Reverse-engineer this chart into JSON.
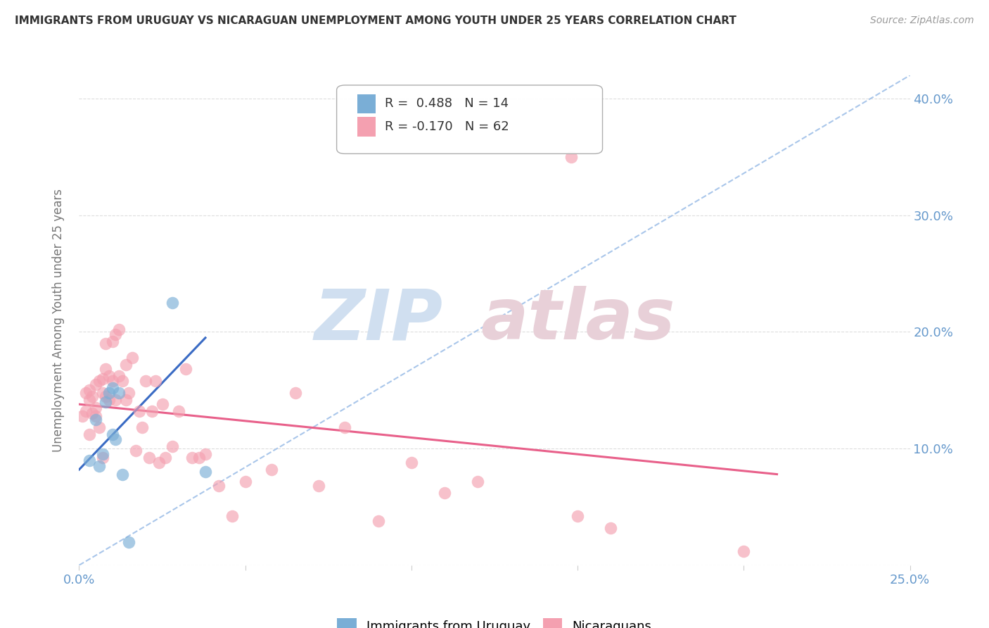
{
  "title": "IMMIGRANTS FROM URUGUAY VS NICARAGUAN UNEMPLOYMENT AMONG YOUTH UNDER 25 YEARS CORRELATION CHART",
  "source": "Source: ZipAtlas.com",
  "ylabel": "Unemployment Among Youth under 25 years",
  "xlim": [
    0.0,
    0.25
  ],
  "ylim": [
    0.0,
    0.42
  ],
  "xtick_positions": [
    0.0,
    0.05,
    0.1,
    0.15,
    0.2,
    0.25
  ],
  "ytick_positions": [
    0.0,
    0.1,
    0.2,
    0.3,
    0.4
  ],
  "color_uruguay": "#7aaed6",
  "color_nicaragua": "#f4a0b0",
  "color_line_uruguay": "#3a6bc4",
  "color_line_nicaragua": "#e8608a",
  "color_trendline_dashed": "#a0c0e8",
  "color_axis_labels": "#6699cc",
  "watermark_zip_color": "#d0dff0",
  "watermark_atlas_color": "#e8d0d8",
  "uruguay_x": [
    0.003,
    0.005,
    0.006,
    0.007,
    0.008,
    0.009,
    0.01,
    0.01,
    0.011,
    0.012,
    0.013,
    0.015,
    0.028,
    0.038
  ],
  "uruguay_y": [
    0.09,
    0.125,
    0.085,
    0.095,
    0.14,
    0.148,
    0.152,
    0.112,
    0.108,
    0.148,
    0.078,
    0.02,
    0.225,
    0.08
  ],
  "nicaragua_x": [
    0.001,
    0.002,
    0.002,
    0.003,
    0.003,
    0.003,
    0.004,
    0.004,
    0.005,
    0.005,
    0.005,
    0.006,
    0.006,
    0.007,
    0.007,
    0.007,
    0.008,
    0.008,
    0.008,
    0.009,
    0.009,
    0.01,
    0.01,
    0.011,
    0.011,
    0.012,
    0.012,
    0.013,
    0.014,
    0.014,
    0.015,
    0.016,
    0.017,
    0.018,
    0.019,
    0.02,
    0.021,
    0.022,
    0.023,
    0.024,
    0.025,
    0.026,
    0.028,
    0.03,
    0.032,
    0.034,
    0.036,
    0.038,
    0.042,
    0.046,
    0.05,
    0.058,
    0.065,
    0.072,
    0.08,
    0.09,
    0.1,
    0.11,
    0.12,
    0.15,
    0.16,
    0.2
  ],
  "nicaragua_y": [
    0.128,
    0.132,
    0.148,
    0.112,
    0.142,
    0.15,
    0.13,
    0.145,
    0.128,
    0.135,
    0.155,
    0.118,
    0.158,
    0.092,
    0.16,
    0.148,
    0.145,
    0.168,
    0.19,
    0.142,
    0.162,
    0.158,
    0.192,
    0.142,
    0.198,
    0.162,
    0.202,
    0.158,
    0.142,
    0.172,
    0.148,
    0.178,
    0.098,
    0.132,
    0.118,
    0.158,
    0.092,
    0.132,
    0.158,
    0.088,
    0.138,
    0.092,
    0.102,
    0.132,
    0.168,
    0.092,
    0.092,
    0.095,
    0.068,
    0.042,
    0.072,
    0.082,
    0.148,
    0.068,
    0.118,
    0.038,
    0.088,
    0.062,
    0.072,
    0.042,
    0.032,
    0.012
  ],
  "nicaragua_outlier_x": [
    0.148
  ],
  "nicaragua_outlier_y": [
    0.35
  ],
  "uruguay_trend_x": [
    0.0,
    0.038
  ],
  "uruguay_trend_y": [
    0.082,
    0.195
  ],
  "nicaragua_trend_x": [
    0.0,
    0.21
  ],
  "nicaragua_trend_y": [
    0.138,
    0.078
  ],
  "dashed_trend_x": [
    0.0,
    0.25
  ],
  "dashed_trend_y": [
    0.0,
    0.42
  ]
}
